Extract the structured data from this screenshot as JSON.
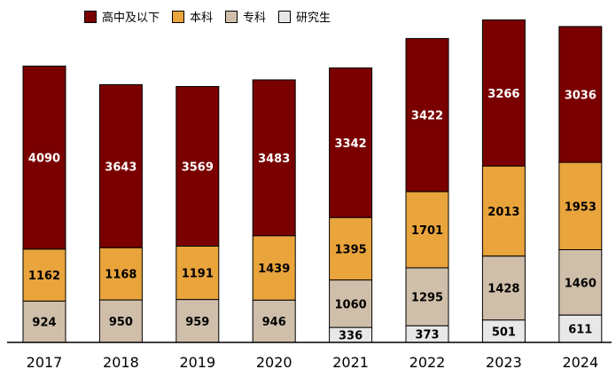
{
  "chart_data": {
    "type": "bar",
    "stacked": true,
    "categories": [
      "2017",
      "2018",
      "2019",
      "2020",
      "2021",
      "2022",
      "2023",
      "2024"
    ],
    "series": [
      {
        "name": "研究生",
        "color": "#e8e8e8",
        "label_color": "#000000",
        "values": [
          null,
          null,
          null,
          null,
          336,
          373,
          501,
          611
        ]
      },
      {
        "name": "专科",
        "color": "#cfbfaa",
        "label_color": "#000000",
        "values": [
          924,
          950,
          959,
          946,
          1060,
          1295,
          1428,
          1460
        ]
      },
      {
        "name": "本科",
        "color": "#e9a43c",
        "label_color": "#000000",
        "values": [
          1162,
          1168,
          1191,
          1439,
          1395,
          1701,
          2013,
          1953
        ]
      },
      {
        "name": "高中及以下",
        "color": "#7a0000",
        "label_color": "#ffffff",
        "values": [
          4090,
          3643,
          3569,
          3483,
          3342,
          3422,
          3266,
          3036
        ]
      }
    ],
    "legend_order": [
      "高中及以下",
      "本科",
      "专科",
      "研究生"
    ],
    "legend_position": "top",
    "grid": false,
    "ylim": [
      0,
      7500
    ]
  }
}
